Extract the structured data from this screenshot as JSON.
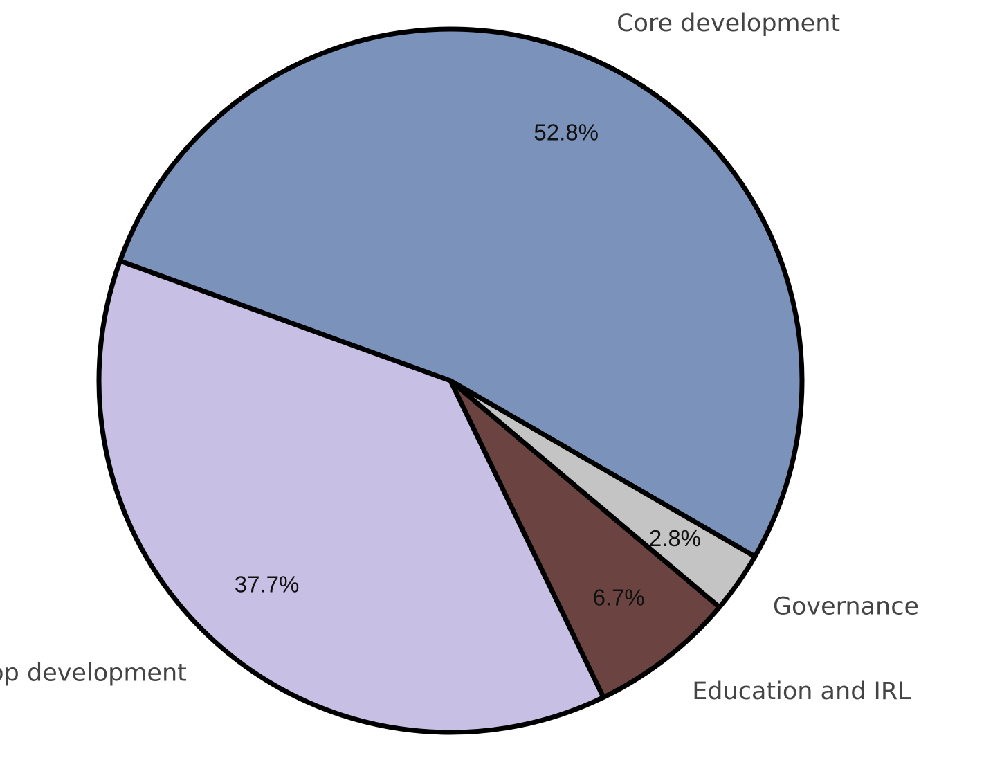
{
  "chart_data": {
    "type": "pie",
    "start_angle_deg": -30,
    "direction": "counterclockwise",
    "labels": [
      "Core development",
      "App development",
      "Education and IRL",
      "Governance"
    ],
    "values": [
      52.8,
      37.7,
      6.7,
      2.8
    ],
    "value_labels": [
      "52.8%",
      "37.7%",
      "6.7%",
      "2.8%"
    ],
    "colors": [
      "#7b93bb",
      "#c7bfe4",
      "#6b4441",
      "#c4c4c4"
    ],
    "edge_color": "#000000",
    "legend": "none"
  }
}
